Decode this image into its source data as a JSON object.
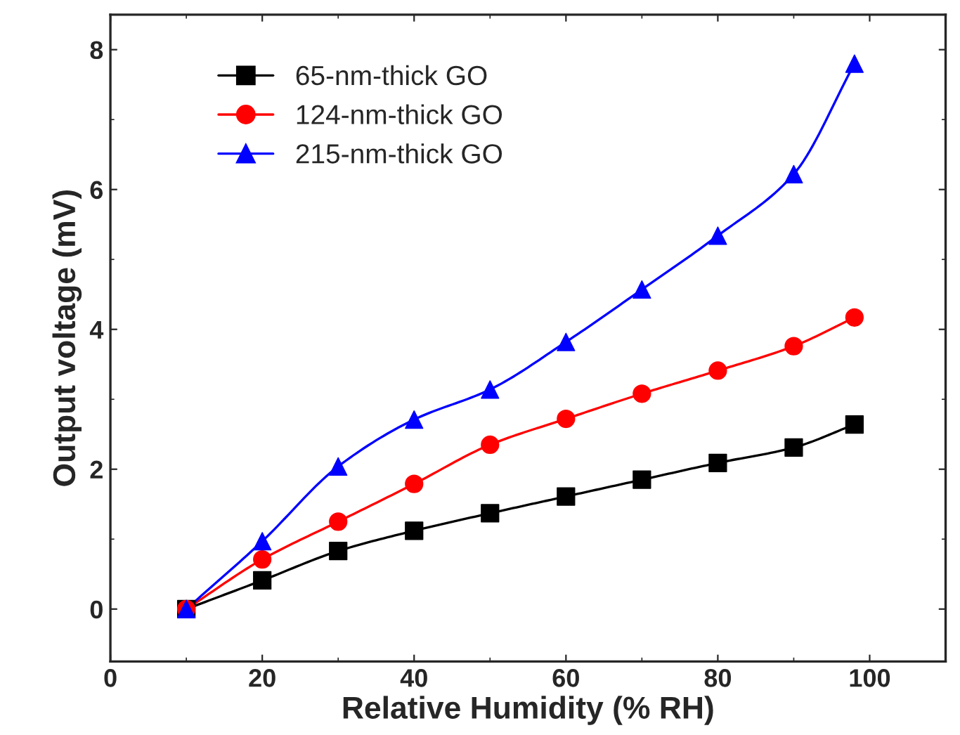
{
  "chart_data": {
    "type": "line",
    "xlabel": "Relative Humidity (% RH)",
    "ylabel": "Output voltage (mV)",
    "x": [
      10,
      20,
      30,
      40,
      50,
      60,
      70,
      80,
      90,
      98
    ],
    "series": [
      {
        "name": "65-nm-thick GO",
        "color": "#000000",
        "marker": "square",
        "values": [
          0,
          0.41,
          0.83,
          1.12,
          1.37,
          1.61,
          1.85,
          2.09,
          2.31,
          2.64
        ]
      },
      {
        "name": "124-nm-thick GO",
        "color": "#ff0000",
        "marker": "circle",
        "values": [
          0,
          0.71,
          1.25,
          1.79,
          2.35,
          2.72,
          3.08,
          3.41,
          3.76,
          4.17
        ]
      },
      {
        "name": "215-nm-thick GO",
        "color": "#0000ff",
        "marker": "triangle",
        "values": [
          0,
          0.97,
          2.04,
          2.71,
          3.14,
          3.82,
          4.57,
          5.34,
          6.22,
          7.8
        ]
      }
    ],
    "xlim": [
      0,
      110
    ],
    "xticks": [
      0,
      20,
      40,
      60,
      80,
      100
    ],
    "ylim": [
      -0.75,
      8.5
    ],
    "yticks": [
      0,
      2,
      4,
      6,
      8
    ],
    "grid": false,
    "legend": "top left",
    "line_style": "solid"
  }
}
